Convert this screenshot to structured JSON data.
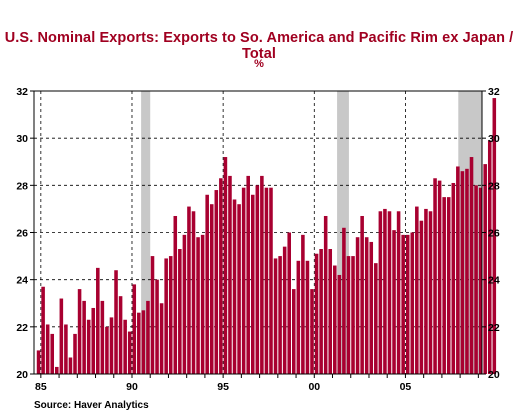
{
  "chart_data": {
    "type": "bar",
    "title": "U.S. Nominal Exports: Exports to So. America and Pacific Rim ex Japan / Total",
    "subtitle": "%",
    "source": "Source: Haver Analytics",
    "x_start": 1984.75,
    "x_step": 0.25,
    "values": [
      21.0,
      23.7,
      22.1,
      21.7,
      20.3,
      23.2,
      22.1,
      20.7,
      21.7,
      23.6,
      23.1,
      22.3,
      22.8,
      24.5,
      23.1,
      22.0,
      22.4,
      24.4,
      23.3,
      22.3,
      21.8,
      23.8,
      22.6,
      22.7,
      23.1,
      25.0,
      24.0,
      23.0,
      24.9,
      25.0,
      26.7,
      25.3,
      25.9,
      27.1,
      26.9,
      25.8,
      25.9,
      27.6,
      27.2,
      27.8,
      28.3,
      29.2,
      28.4,
      27.4,
      27.2,
      27.9,
      28.4,
      27.6,
      28.0,
      28.4,
      27.9,
      27.9,
      24.9,
      25.0,
      25.4,
      26.0,
      23.6,
      24.8,
      25.9,
      24.8,
      23.6,
      25.1,
      25.3,
      26.7,
      25.3,
      24.6,
      24.2,
      26.2,
      25.0,
      25.0,
      25.8,
      26.7,
      25.8,
      25.6,
      24.7,
      26.9,
      27.0,
      26.9,
      26.1,
      26.9,
      25.9,
      25.9,
      26.0,
      27.1,
      26.5,
      27.0,
      26.9,
      28.3,
      28.2,
      27.5,
      27.5,
      28.1,
      28.8,
      28.6,
      28.7,
      29.2,
      28.0,
      27.9,
      28.9,
      29.9,
      31.7
    ],
    "x_ticks": [
      {
        "x": 1985,
        "label": "85"
      },
      {
        "x": 1990,
        "label": "90"
      },
      {
        "x": 1995,
        "label": "95"
      },
      {
        "x": 2000,
        "label": "00"
      },
      {
        "x": 2005,
        "label": "05"
      }
    ],
    "y_ticks": [
      20,
      22,
      24,
      26,
      28,
      30,
      32
    ],
    "xlim": [
      1984.625,
      2009.2
    ],
    "ylim": [
      20,
      32
    ],
    "recessions": [
      [
        1990.5,
        1991.0
      ],
      [
        2001.25,
        2001.9
      ],
      [
        2007.9,
        2009.2
      ]
    ],
    "grid": true,
    "bar_color": "#a80030",
    "recession_color": "#c8c8c8"
  }
}
